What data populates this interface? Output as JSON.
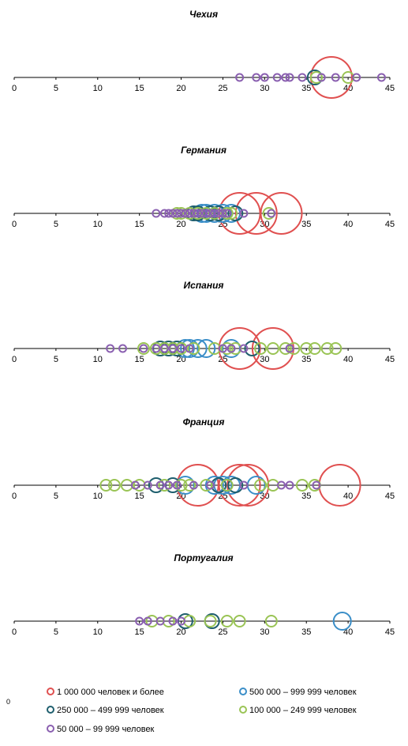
{
  "chart_data": {
    "type": "scatter",
    "subtype": "bubble",
    "x_range": [
      0,
      45
    ],
    "x_ticks": [
      "0",
      "5",
      "10",
      "15",
      "20",
      "25",
      "30",
      "35",
      "40",
      "45"
    ],
    "stray_label": "0",
    "categories": {
      "c1": {
        "label": "1 000 000 человек и более",
        "color": "#e05050",
        "size": 5
      },
      "c2": {
        "label": "500 000 – 999 999 человек",
        "color": "#3a8ec8",
        "size": 4
      },
      "c3": {
        "label": "250 000 – 499 999 человек",
        "color": "#1f5f6e",
        "size": 3
      },
      "c4": {
        "label": "100 000 – 249 999 человек",
        "color": "#9ac455",
        "size": 2
      },
      "c5": {
        "label": "50 000 – 99 999 человек",
        "color": "#8a5fb0",
        "size": 1
      }
    },
    "legend_order": [
      [
        "c1",
        "c2"
      ],
      [
        "c3",
        "c4"
      ],
      [
        "c5"
      ]
    ],
    "charts": [
      {
        "title": "Чехия",
        "points": [
          {
            "x": 38.0,
            "cat": "c1"
          },
          {
            "x": 36.0,
            "cat": "c3"
          },
          {
            "x": 36.2,
            "cat": "c4"
          },
          {
            "x": 40.0,
            "cat": "c4"
          },
          {
            "x": 27.0,
            "cat": "c5"
          },
          {
            "x": 29.0,
            "cat": "c5"
          },
          {
            "x": 30.0,
            "cat": "c5"
          },
          {
            "x": 31.5,
            "cat": "c5"
          },
          {
            "x": 32.5,
            "cat": "c5"
          },
          {
            "x": 33.0,
            "cat": "c5"
          },
          {
            "x": 34.5,
            "cat": "c5"
          },
          {
            "x": 36.8,
            "cat": "c5"
          },
          {
            "x": 38.5,
            "cat": "c5"
          },
          {
            "x": 41.0,
            "cat": "c5"
          },
          {
            "x": 44.0,
            "cat": "c5"
          }
        ]
      },
      {
        "title": "Германия",
        "points": [
          {
            "x": 32.0,
            "cat": "c1"
          },
          {
            "x": 29.0,
            "cat": "c1"
          },
          {
            "x": 27.0,
            "cat": "c1"
          },
          {
            "x": 26.0,
            "cat": "c2"
          },
          {
            "x": 25.0,
            "cat": "c2"
          },
          {
            "x": 24.0,
            "cat": "c2"
          },
          {
            "x": 23.0,
            "cat": "c2"
          },
          {
            "x": 22.5,
            "cat": "c2"
          },
          {
            "x": 24.5,
            "cat": "c3"
          },
          {
            "x": 23.5,
            "cat": "c3"
          },
          {
            "x": 22.0,
            "cat": "c3"
          },
          {
            "x": 21.5,
            "cat": "c3"
          },
          {
            "x": 26.5,
            "cat": "c3"
          },
          {
            "x": 25.5,
            "cat": "c4"
          },
          {
            "x": 24.0,
            "cat": "c4"
          },
          {
            "x": 23.0,
            "cat": "c4"
          },
          {
            "x": 22.0,
            "cat": "c4"
          },
          {
            "x": 21.0,
            "cat": "c4"
          },
          {
            "x": 20.0,
            "cat": "c4"
          },
          {
            "x": 19.5,
            "cat": "c4"
          },
          {
            "x": 26.0,
            "cat": "c4"
          },
          {
            "x": 30.5,
            "cat": "c4"
          },
          {
            "x": 17.0,
            "cat": "c5"
          },
          {
            "x": 18.0,
            "cat": "c5"
          },
          {
            "x": 18.5,
            "cat": "c5"
          },
          {
            "x": 19.0,
            "cat": "c5"
          },
          {
            "x": 19.5,
            "cat": "c5"
          },
          {
            "x": 20.0,
            "cat": "c5"
          },
          {
            "x": 20.5,
            "cat": "c5"
          },
          {
            "x": 21.0,
            "cat": "c5"
          },
          {
            "x": 21.5,
            "cat": "c5"
          },
          {
            "x": 22.0,
            "cat": "c5"
          },
          {
            "x": 22.5,
            "cat": "c5"
          },
          {
            "x": 23.0,
            "cat": "c5"
          },
          {
            "x": 23.5,
            "cat": "c5"
          },
          {
            "x": 24.0,
            "cat": "c5"
          },
          {
            "x": 24.5,
            "cat": "c5"
          },
          {
            "x": 25.0,
            "cat": "c5"
          },
          {
            "x": 25.5,
            "cat": "c5"
          },
          {
            "x": 27.5,
            "cat": "c5"
          },
          {
            "x": 30.8,
            "cat": "c5"
          }
        ]
      },
      {
        "title": "Испания",
        "points": [
          {
            "x": 31.0,
            "cat": "c1"
          },
          {
            "x": 27.0,
            "cat": "c1"
          },
          {
            "x": 23.0,
            "cat": "c2"
          },
          {
            "x": 22.0,
            "cat": "c2"
          },
          {
            "x": 21.0,
            "cat": "c2"
          },
          {
            "x": 20.5,
            "cat": "c2"
          },
          {
            "x": 26.0,
            "cat": "c2"
          },
          {
            "x": 18.5,
            "cat": "c3"
          },
          {
            "x": 19.5,
            "cat": "c3"
          },
          {
            "x": 28.5,
            "cat": "c3"
          },
          {
            "x": 17.5,
            "cat": "c3"
          },
          {
            "x": 15.5,
            "cat": "c4"
          },
          {
            "x": 17.0,
            "cat": "c4"
          },
          {
            "x": 18.0,
            "cat": "c4"
          },
          {
            "x": 19.0,
            "cat": "c4"
          },
          {
            "x": 20.0,
            "cat": "c4"
          },
          {
            "x": 21.5,
            "cat": "c4"
          },
          {
            "x": 24.0,
            "cat": "c4"
          },
          {
            "x": 25.5,
            "cat": "c4"
          },
          {
            "x": 26.5,
            "cat": "c4"
          },
          {
            "x": 29.5,
            "cat": "c4"
          },
          {
            "x": 31.0,
            "cat": "c4"
          },
          {
            "x": 32.5,
            "cat": "c4"
          },
          {
            "x": 33.5,
            "cat": "c4"
          },
          {
            "x": 35.0,
            "cat": "c4"
          },
          {
            "x": 36.0,
            "cat": "c4"
          },
          {
            "x": 37.5,
            "cat": "c4"
          },
          {
            "x": 38.5,
            "cat": "c4"
          },
          {
            "x": 11.5,
            "cat": "c5"
          },
          {
            "x": 13.0,
            "cat": "c5"
          },
          {
            "x": 15.5,
            "cat": "c5"
          },
          {
            "x": 17.0,
            "cat": "c5"
          },
          {
            "x": 18.0,
            "cat": "c5"
          },
          {
            "x": 19.0,
            "cat": "c5"
          },
          {
            "x": 20.0,
            "cat": "c5"
          },
          {
            "x": 21.0,
            "cat": "c5"
          },
          {
            "x": 25.0,
            "cat": "c5"
          },
          {
            "x": 26.0,
            "cat": "c5"
          },
          {
            "x": 27.5,
            "cat": "c5"
          },
          {
            "x": 33.0,
            "cat": "c5"
          }
        ]
      },
      {
        "title": "Франция",
        "points": [
          {
            "x": 39.0,
            "cat": "c1"
          },
          {
            "x": 28.0,
            "cat": "c1"
          },
          {
            "x": 27.0,
            "cat": "c1"
          },
          {
            "x": 22.0,
            "cat": "c1"
          },
          {
            "x": 29.0,
            "cat": "c2"
          },
          {
            "x": 26.0,
            "cat": "c2"
          },
          {
            "x": 25.0,
            "cat": "c2"
          },
          {
            "x": 24.0,
            "cat": "c2"
          },
          {
            "x": 20.5,
            "cat": "c2"
          },
          {
            "x": 17.0,
            "cat": "c3"
          },
          {
            "x": 19.0,
            "cat": "c3"
          },
          {
            "x": 26.5,
            "cat": "c3"
          },
          {
            "x": 24.5,
            "cat": "c3"
          },
          {
            "x": 11.0,
            "cat": "c4"
          },
          {
            "x": 12.0,
            "cat": "c4"
          },
          {
            "x": 13.5,
            "cat": "c4"
          },
          {
            "x": 15.0,
            "cat": "c4"
          },
          {
            "x": 18.0,
            "cat": "c4"
          },
          {
            "x": 20.0,
            "cat": "c4"
          },
          {
            "x": 21.0,
            "cat": "c4"
          },
          {
            "x": 23.0,
            "cat": "c4"
          },
          {
            "x": 25.5,
            "cat": "c4"
          },
          {
            "x": 29.5,
            "cat": "c4"
          },
          {
            "x": 31.0,
            "cat": "c4"
          },
          {
            "x": 34.5,
            "cat": "c4"
          },
          {
            "x": 36.0,
            "cat": "c4"
          },
          {
            "x": 14.5,
            "cat": "c5"
          },
          {
            "x": 16.0,
            "cat": "c5"
          },
          {
            "x": 17.5,
            "cat": "c5"
          },
          {
            "x": 18.5,
            "cat": "c5"
          },
          {
            "x": 19.5,
            "cat": "c5"
          },
          {
            "x": 21.5,
            "cat": "c5"
          },
          {
            "x": 23.5,
            "cat": "c5"
          },
          {
            "x": 27.5,
            "cat": "c5"
          },
          {
            "x": 32.0,
            "cat": "c5"
          },
          {
            "x": 33.0,
            "cat": "c5"
          },
          {
            "x": 36.2,
            "cat": "c5"
          }
        ]
      },
      {
        "title": "Португалия",
        "points": [
          {
            "x": 39.3,
            "cat": "c2"
          },
          {
            "x": 20.5,
            "cat": "c3"
          },
          {
            "x": 23.7,
            "cat": "c3"
          },
          {
            "x": 16.5,
            "cat": "c4"
          },
          {
            "x": 18.5,
            "cat": "c4"
          },
          {
            "x": 21.0,
            "cat": "c4"
          },
          {
            "x": 23.5,
            "cat": "c4"
          },
          {
            "x": 25.5,
            "cat": "c4"
          },
          {
            "x": 27.0,
            "cat": "c4"
          },
          {
            "x": 30.8,
            "cat": "c4"
          },
          {
            "x": 15.0,
            "cat": "c5"
          },
          {
            "x": 16.0,
            "cat": "c5"
          },
          {
            "x": 17.5,
            "cat": "c5"
          },
          {
            "x": 19.0,
            "cat": "c5"
          },
          {
            "x": 20.0,
            "cat": "c5"
          }
        ]
      }
    ]
  }
}
